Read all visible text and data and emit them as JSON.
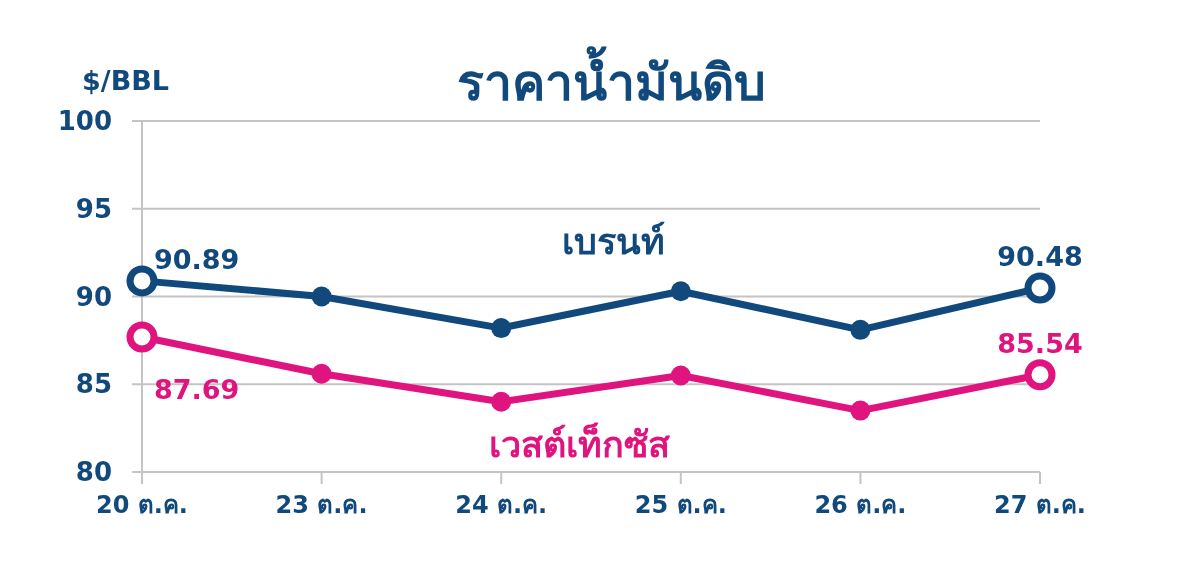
{
  "chart_data": {
    "type": "line",
    "title": "ราคาน้ำมันดิบ",
    "ylabel": "$/BBL",
    "categories": [
      "20 ต.ค.",
      "23 ต.ค.",
      "24 ต.ค.",
      "25 ต.ค.",
      "26 ต.ค.",
      "27 ต.ค."
    ],
    "series": [
      {
        "name": "เบรนท์",
        "color": "#11497c",
        "values": [
          90.89,
          90.0,
          88.2,
          90.3,
          88.1,
          90.48
        ],
        "value_labels": [
          "90.89",
          null,
          null,
          null,
          null,
          "90.48"
        ]
      },
      {
        "name": "เวสต์เท็กซัส",
        "color": "#e0147f",
        "values": [
          87.69,
          85.6,
          84.0,
          85.5,
          83.5,
          85.54
        ],
        "value_labels": [
          "87.69",
          null,
          null,
          null,
          null,
          "85.54"
        ]
      }
    ],
    "ylim": [
      80,
      100
    ],
    "yticks": [
      80,
      85,
      90,
      95,
      100
    ],
    "grid": "y",
    "marker": "circle",
    "line_style": "solid"
  }
}
